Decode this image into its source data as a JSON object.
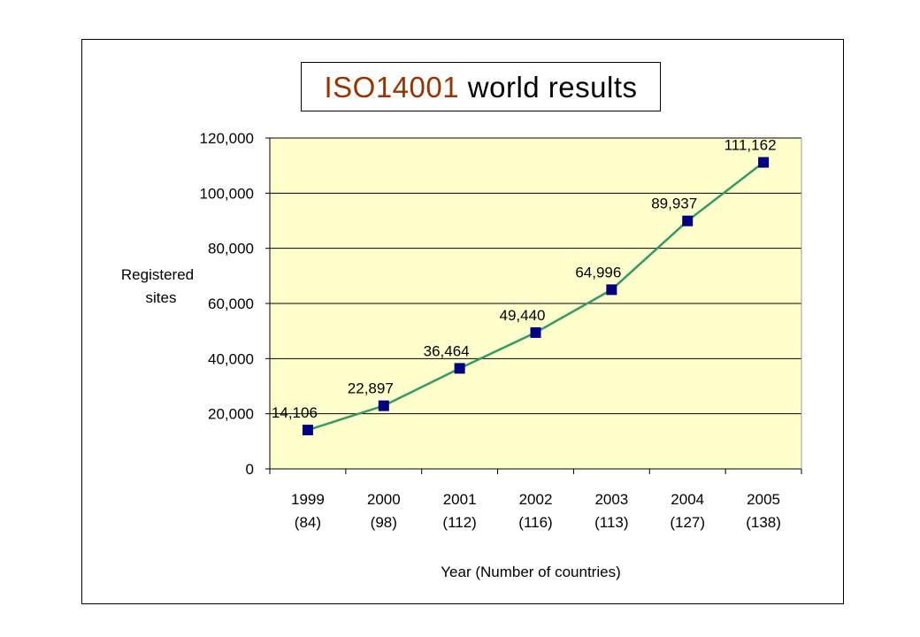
{
  "title": {
    "part1": "ISO14001",
    "part2": " world results"
  },
  "colors": {
    "title_accent": "#993300",
    "plot_bg": "#ffffcc",
    "line": "#339966",
    "marker": "#000080",
    "grid": "#000000"
  },
  "chart_data": {
    "type": "line",
    "title": "ISO14001 world results",
    "categories": [
      [
        "1999",
        "(84)"
      ],
      [
        "2000",
        "(98)"
      ],
      [
        "2001",
        "(112)"
      ],
      [
        "2002",
        "(116)"
      ],
      [
        "2003",
        "(113)"
      ],
      [
        "2004",
        "(127)"
      ],
      [
        "2005",
        "(138)"
      ]
    ],
    "series": [
      {
        "values": [
          14106,
          22897,
          36464,
          49440,
          64996,
          89937,
          111162
        ]
      }
    ],
    "data_labels": [
      "14,106",
      "22,897",
      "36,464",
      "49,440",
      "64,996",
      "89,937",
      "111,162"
    ],
    "ylabel": [
      "Registered",
      "sites"
    ],
    "xlabel": "Year (Number of countries)",
    "ylim": [
      0,
      120000
    ],
    "yticks": [
      0,
      20000,
      40000,
      60000,
      80000,
      100000,
      120000
    ],
    "ytick_labels": [
      "0",
      "20,000",
      "40,000",
      "60,000",
      "80,000",
      "100,000",
      "120,000"
    ],
    "grid": "horizontal",
    "legend": "none"
  }
}
